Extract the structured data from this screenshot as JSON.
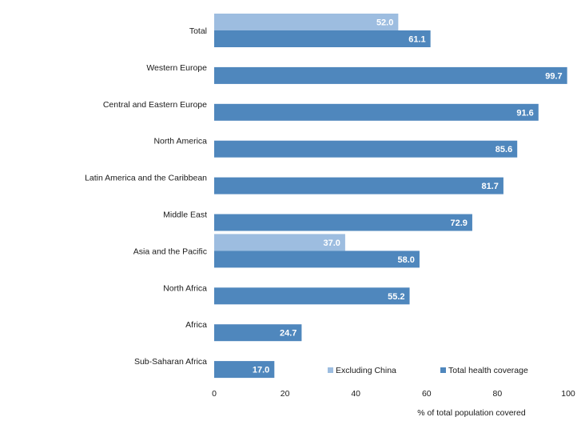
{
  "chart_data": {
    "type": "bar",
    "orientation": "horizontal",
    "categories": [
      "Total",
      "Western Europe",
      "Central and Eastern Europe",
      "North America",
      "Latin America and the Caribbean",
      "Middle East",
      "Asia and the Pacific",
      "North Africa",
      "Africa",
      "Sub-Saharan Africa"
    ],
    "series": [
      {
        "name": "Excluding China",
        "color": "#9dbde0",
        "values": [
          52.0,
          null,
          null,
          null,
          null,
          null,
          37.0,
          null,
          null,
          null
        ]
      },
      {
        "name": "Total health coverage",
        "color": "#4f87bd",
        "values": [
          61.1,
          99.7,
          91.6,
          85.6,
          81.7,
          72.9,
          58.0,
          55.2,
          24.7,
          17.0
        ]
      }
    ],
    "xlabel": "% of total population covered",
    "xlim": [
      0,
      100
    ],
    "xticks": [
      "0",
      "20",
      "40",
      "60",
      "80",
      "100"
    ],
    "legend_position": "bottom-right",
    "grid": false
  }
}
